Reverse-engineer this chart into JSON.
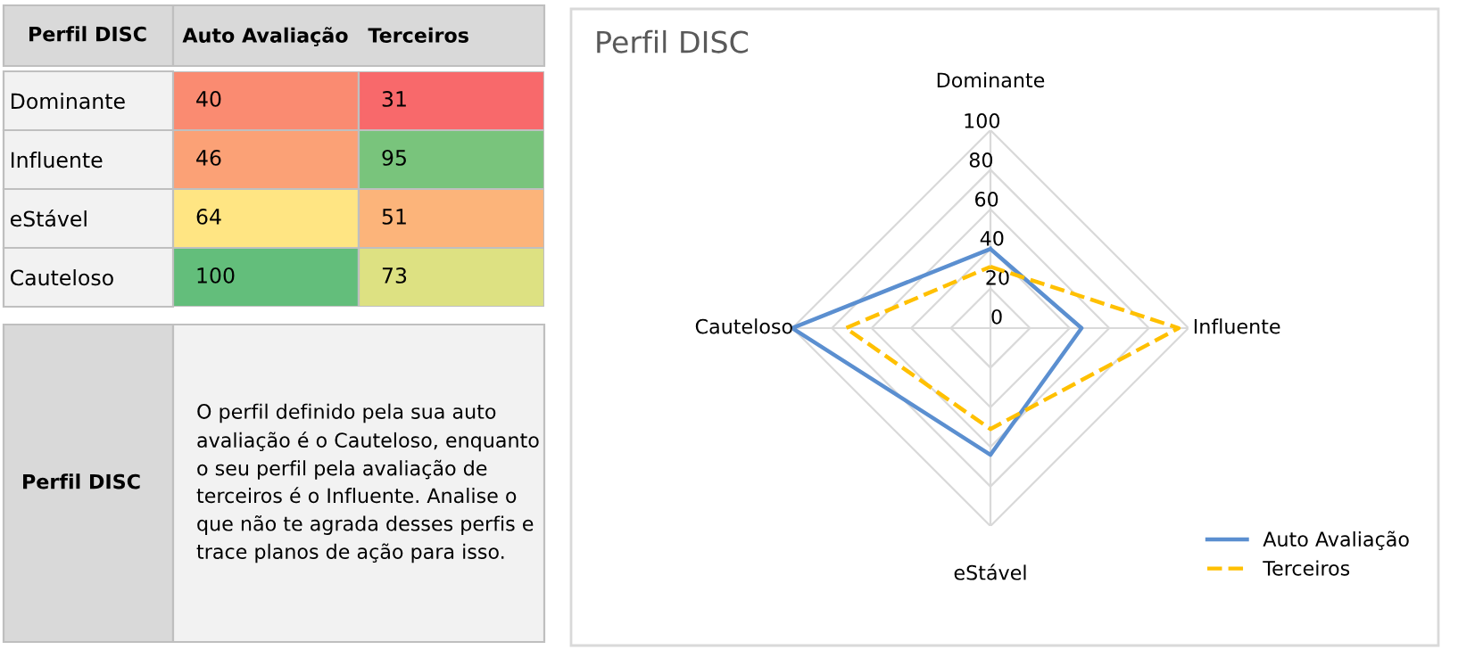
{
  "chart_data": [
    {
      "type": "heatmap",
      "title": "Perfil DISC",
      "categories": [
        "Auto Avaliação",
        "Terceiros"
      ],
      "y_categories": [
        "Dominante",
        "Influente",
        "eStável",
        "Cauteloso"
      ],
      "cells": [
        [
          40,
          31
        ],
        [
          46,
          95
        ],
        [
          64,
          51
        ],
        [
          100,
          73
        ]
      ],
      "data_labels": true,
      "annotations": [
        "Perfil DISC",
        "O perfil definido pela sua auto avaliação é o Cauteloso, enquanto o seu perfil pela avaliação de terceiros é o Influente. Analise o que não te agrada desses perfis e trace planos de ação para isso."
      ]
    },
    {
      "type": "radar",
      "title": "Perfil DISC",
      "categories": [
        "Dominante",
        "Influente",
        "eStável",
        "Cauteloso"
      ],
      "series": [
        {
          "name": "Auto Avaliação",
          "color": "#5b8fd0",
          "values": [
            40,
            46,
            64,
            100
          ],
          "line_style": "solid"
        },
        {
          "name": "Terceiros",
          "color": "#ffc000",
          "values": [
            31,
            95,
            51,
            73
          ],
          "line_style": "dashed"
        }
      ],
      "ylim": [
        0,
        100
      ],
      "yticks": [
        0,
        20,
        40,
        60,
        80,
        100
      ],
      "grid": true,
      "legend": "bottom right",
      "marker": "none"
    }
  ]
}
